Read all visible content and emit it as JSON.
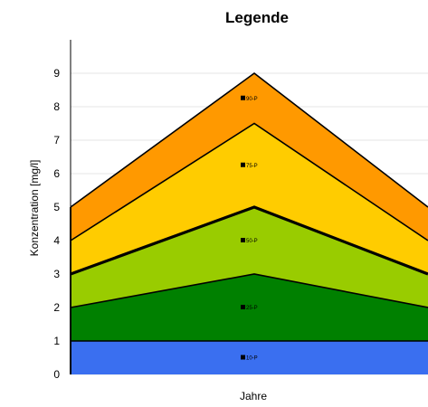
{
  "chart_data": {
    "type": "area",
    "title": "Legende",
    "xlabel": "Jahre",
    "ylabel": "Konzentration [mg/l]",
    "ylim": [
      0,
      10
    ],
    "yticks": [
      0,
      1,
      2,
      3,
      4,
      5,
      6,
      7,
      8,
      9
    ],
    "x": [
      0,
      1,
      2
    ],
    "grid": true,
    "series": [
      {
        "name": "10-P",
        "values": [
          1,
          1,
          1
        ],
        "color": "#3a6ff0"
      },
      {
        "name": "25-P",
        "values": [
          2,
          3,
          2
        ],
        "color": "#008000"
      },
      {
        "name": "50-P",
        "values": [
          3,
          5,
          3
        ],
        "color": "#99cc00"
      },
      {
        "name": "75-P",
        "values": [
          4,
          7.5,
          4
        ],
        "color": "#ffcc00"
      },
      {
        "name": "90-P",
        "values": [
          5,
          9,
          5
        ],
        "color": "#ff9900"
      }
    ]
  }
}
